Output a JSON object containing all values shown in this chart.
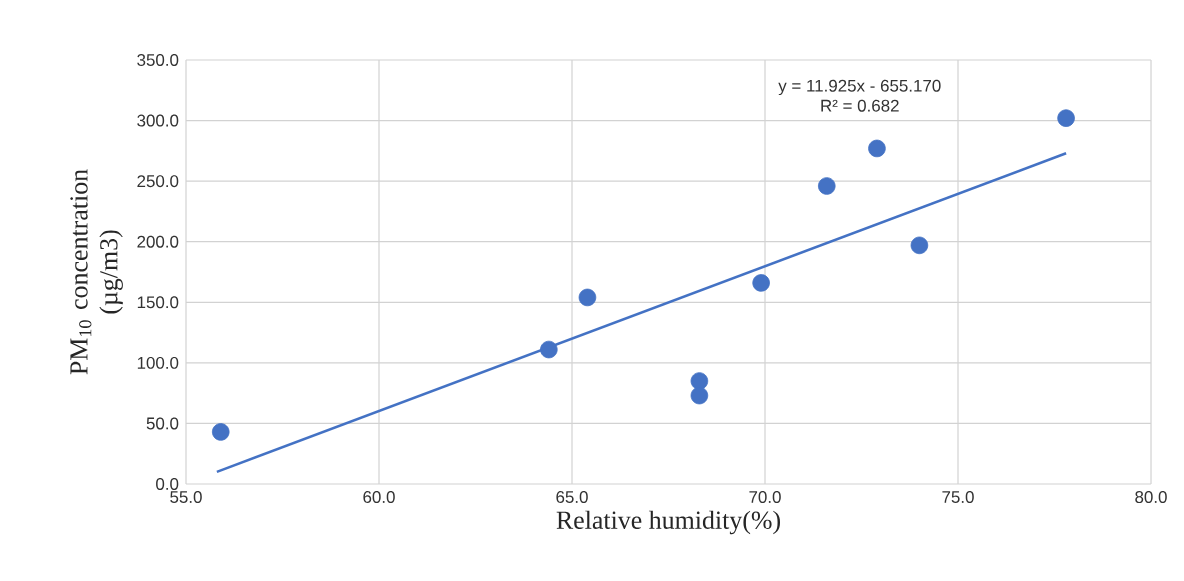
{
  "chart_data": {
    "type": "scatter",
    "xlabel": "Relative humidity(%)",
    "ylabel": "PM$_{10}$ concentration (µg/m3)",
    "xlim": [
      55,
      80
    ],
    "ylim": [
      0,
      350
    ],
    "xticks": [
      {
        "value": 55,
        "label": "55.0"
      },
      {
        "value": 60,
        "label": "60.0"
      },
      {
        "value": 65,
        "label": "65.0"
      },
      {
        "value": 70,
        "label": "70.0"
      },
      {
        "value": 75,
        "label": "75.0"
      },
      {
        "value": 80,
        "label": "80.0"
      }
    ],
    "yticks": [
      {
        "value": 0,
        "label": "0.0"
      },
      {
        "value": 50,
        "label": "50.0"
      },
      {
        "value": 100,
        "label": "100.0"
      },
      {
        "value": 150,
        "label": "150.0"
      },
      {
        "value": 200,
        "label": "200.0"
      },
      {
        "value": 250,
        "label": "250.0"
      },
      {
        "value": 300,
        "label": "300.0"
      },
      {
        "value": 350,
        "label": "350.0"
      }
    ],
    "grid": true,
    "series": [
      {
        "marker": "circle",
        "color": "#4472c4",
        "x": [
          55.9,
          64.4,
          65.4,
          68.3,
          68.3,
          69.9,
          71.6,
          72.9,
          74.0,
          77.8
        ],
        "values": [
          43,
          111,
          154,
          85,
          73,
          166,
          246,
          277,
          197,
          302
        ]
      },
      {
        "type": "line",
        "marker": "none",
        "line_style": "solid",
        "color": "#4472c4",
        "x": [
          55.8,
          77.8
        ],
        "values": [
          10,
          273
        ]
      }
    ],
    "annotations": [
      "y = 11.925x - 655.170",
      "R² = 0.682"
    ]
  }
}
